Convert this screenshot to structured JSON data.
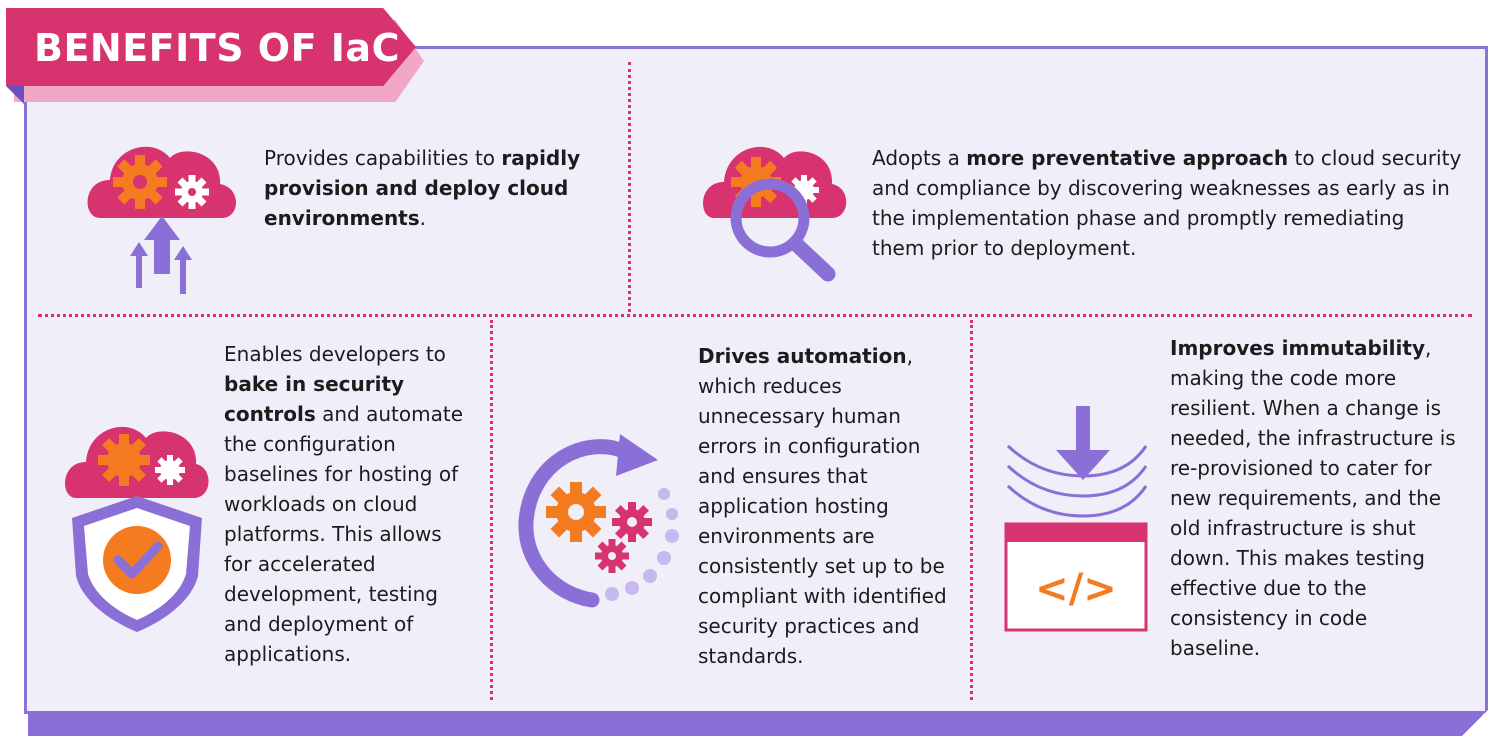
{
  "header": {
    "title": "BENEFITS OF IaC"
  },
  "benefits": [
    {
      "icon": "cloud-gears-upload-icon",
      "parts": [
        {
          "text": "Provides capabilities to ",
          "bold": false
        },
        {
          "text": "rapidly provision and deploy cloud environments",
          "bold": true
        },
        {
          "text": ".",
          "bold": false
        }
      ]
    },
    {
      "icon": "cloud-gears-magnifier-icon",
      "parts": [
        {
          "text": "Adopts a ",
          "bold": false
        },
        {
          "text": "more preventative approach",
          "bold": true
        },
        {
          "text": " to cloud security and compliance by discovering weaknesses as early as in the implementation phase and promptly remediating them prior to deployment.",
          "bold": false
        }
      ]
    },
    {
      "icon": "cloud-gears-shield-check-icon",
      "parts": [
        {
          "text": "Enables developers to ",
          "bold": false
        },
        {
          "text": "bake in security controls",
          "bold": true
        },
        {
          "text": " and automate the configuration baselines for hosting of workloads on cloud platforms. This allows for accelerated development, testing and deployment of applications.",
          "bold": false
        }
      ]
    },
    {
      "icon": "gears-cycle-arrow-icon",
      "parts": [
        {
          "text": "Drives automation",
          "bold": true
        },
        {
          "text": ", which reduces unnecessary human errors in configuration and ensures that application hosting environments are consistently set up to be compliant with identified security practices and standards.",
          "bold": false
        }
      ]
    },
    {
      "icon": "code-window-download-icon",
      "parts": [
        {
          "text": "Improves immutability",
          "bold": true
        },
        {
          "text": ", making the code more resilient. When a change is needed, the infrastructure is re-provisioned to cater for new requirements, and the old infrastructure is shut down. This makes testing effective due to the consistency in code baseline.",
          "bold": false
        }
      ]
    }
  ],
  "code_symbol": "</>",
  "colors": {
    "pink": "#d7336f",
    "purple": "#8a6fd6",
    "orange": "#f47b20",
    "panel": "#f0eef9"
  }
}
